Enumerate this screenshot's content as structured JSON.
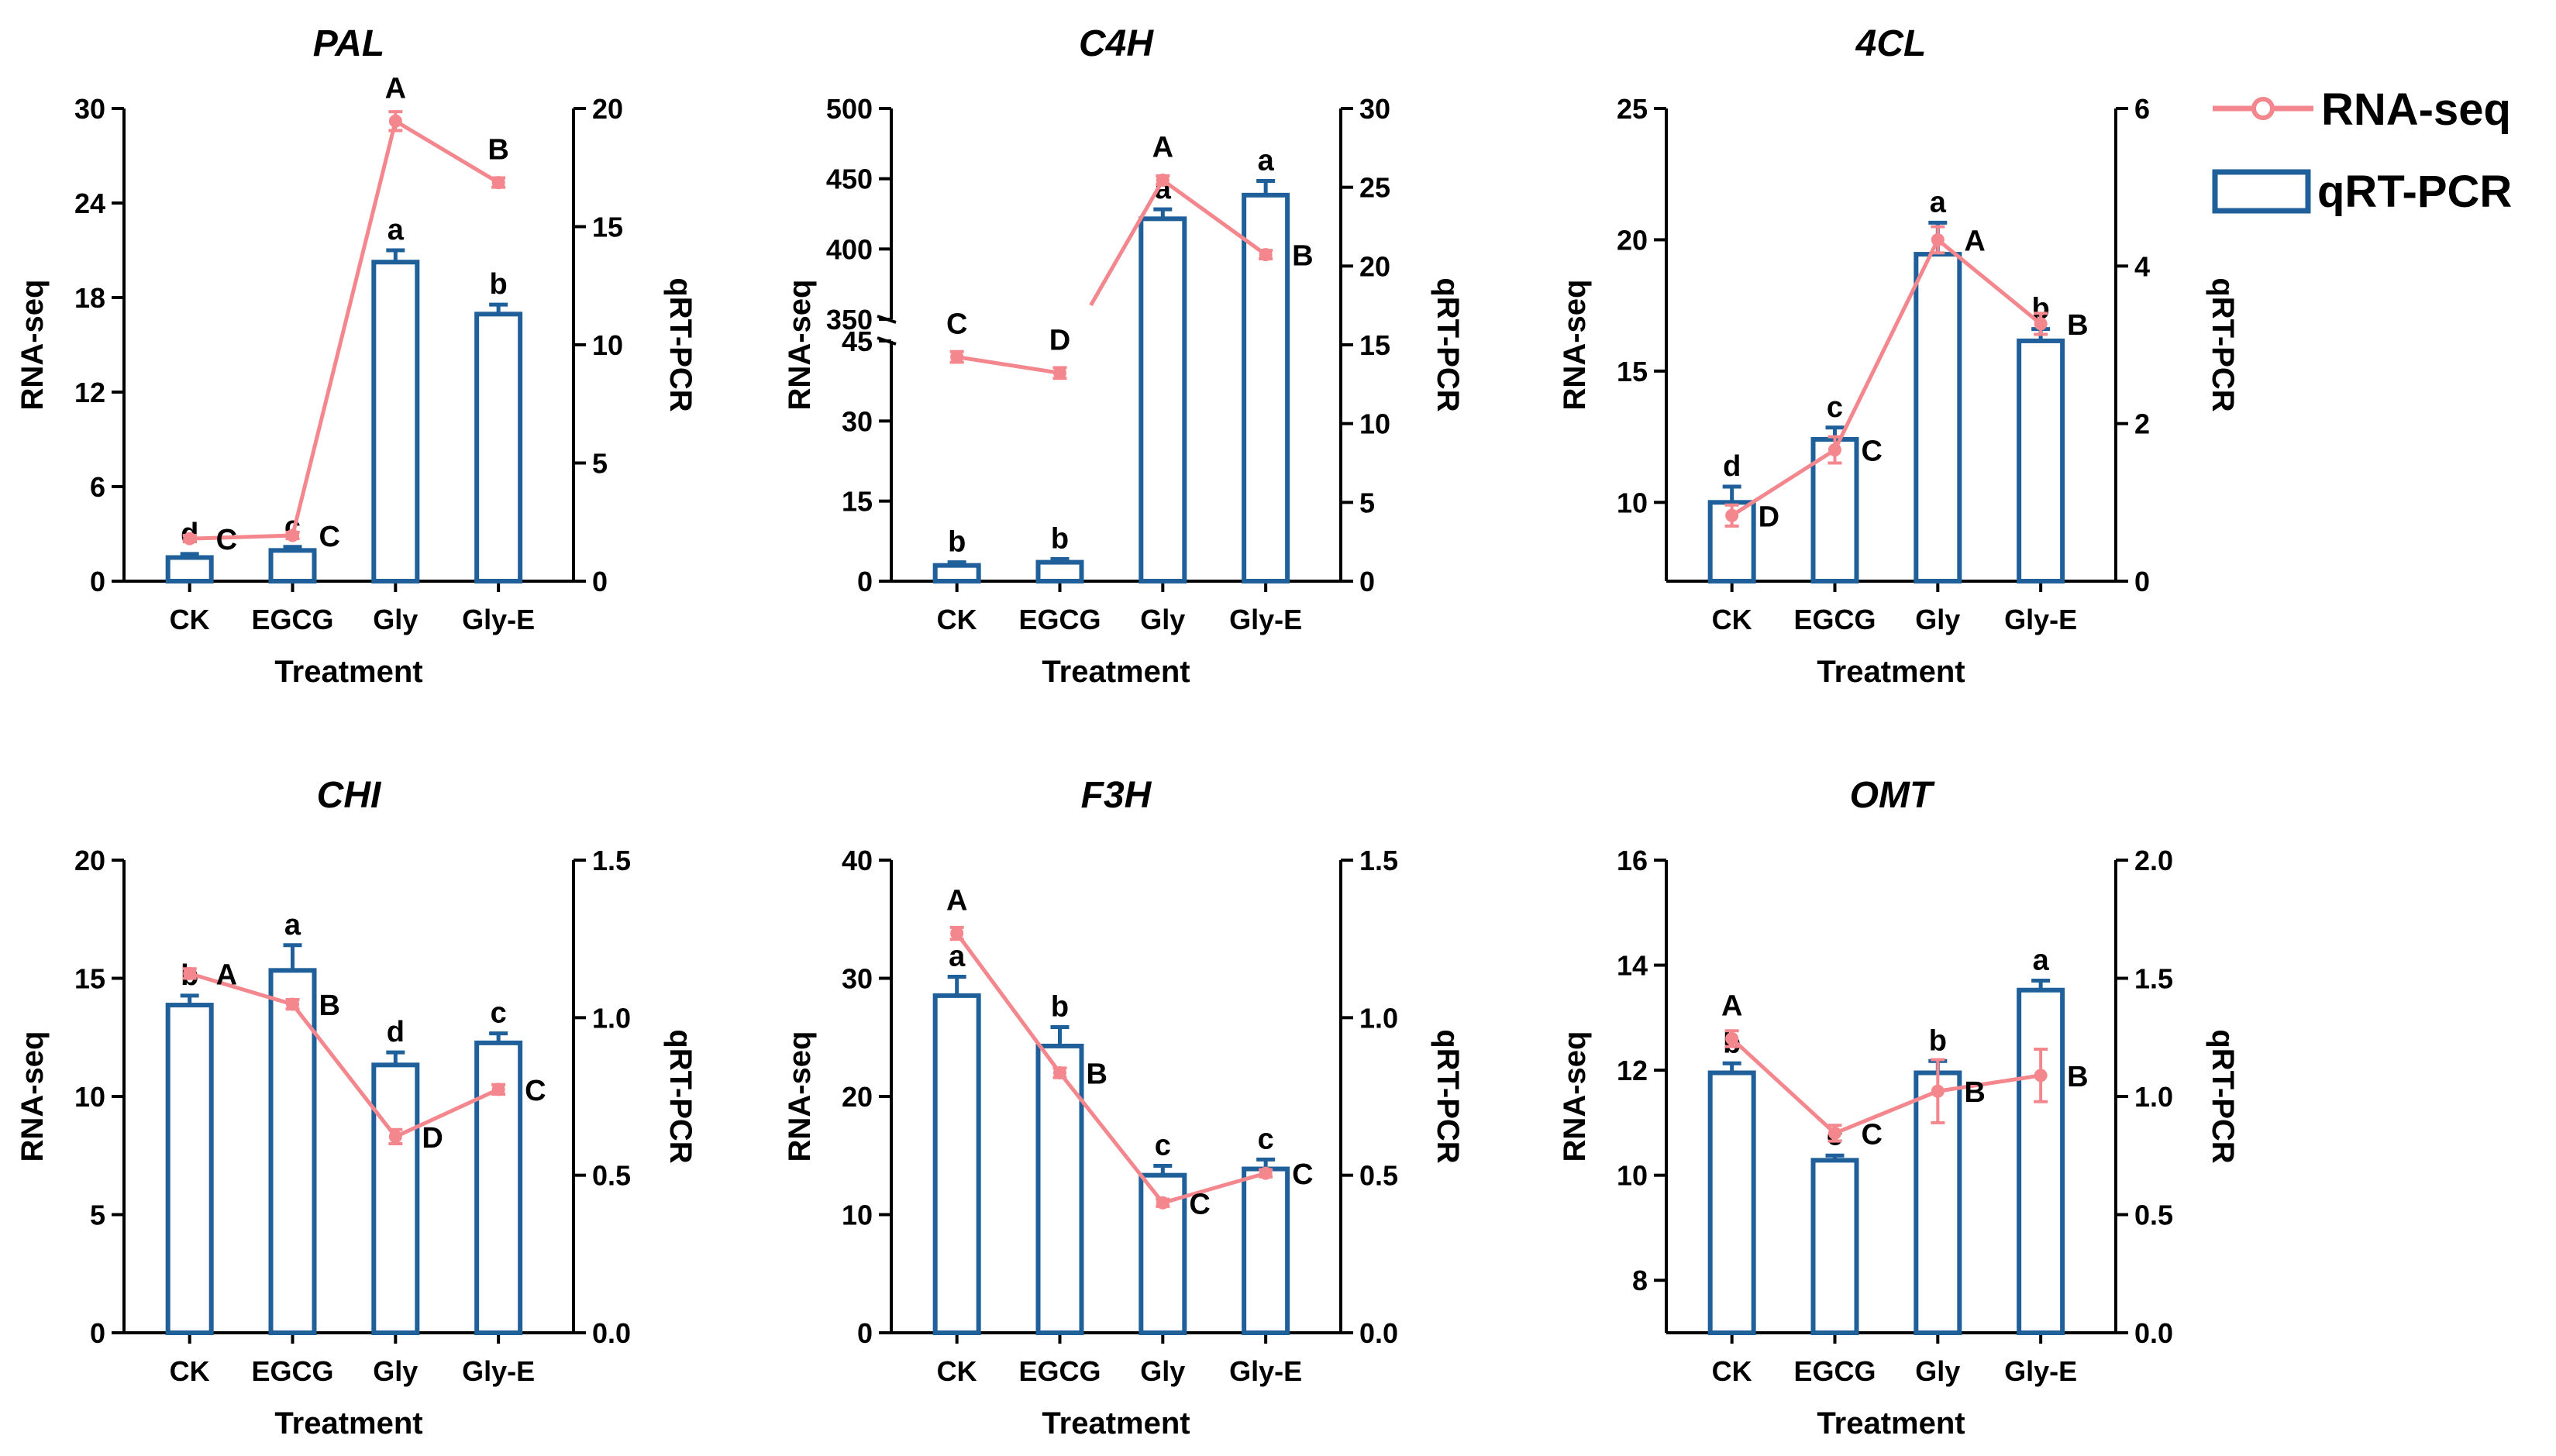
{
  "legend": {
    "rna_label": "RNA-seq",
    "qpcr_label": "qRT-PCR"
  },
  "colors": {
    "rna_line": "#f4878d",
    "qpcr_bar": "#1f5f9a",
    "axis": "#000000"
  },
  "chart_data": [
    {
      "type": "bar",
      "title": "PAL",
      "categories": [
        "CK",
        "EGCG",
        "Gly",
        "Gly-E"
      ],
      "xlabel": "Treatment",
      "ylabel": "RNA-seq",
      "y2label": "qRT-PCR",
      "ylim": [
        0,
        30
      ],
      "yticks": [
        0,
        6,
        12,
        18,
        24,
        30
      ],
      "y2lim": [
        0,
        20
      ],
      "y2ticks": [
        0,
        5,
        10,
        15,
        20
      ],
      "series": [
        {
          "name": "RNA-seq",
          "type": "line",
          "axis": "left",
          "values": [
            2.7,
            2.9,
            29.2,
            25.3
          ],
          "errors": [
            0.2,
            0.2,
            0.6,
            0.3
          ],
          "labels": [
            "C",
            "C",
            "A",
            "B"
          ]
        },
        {
          "name": "qRT-PCR",
          "type": "bar",
          "axis": "right",
          "values": [
            1.0,
            1.3,
            13.5,
            11.3
          ],
          "errors": [
            0.15,
            0.15,
            0.5,
            0.4
          ],
          "labels": [
            "d",
            "c",
            "a",
            "b"
          ]
        }
      ]
    },
    {
      "type": "bar",
      "title": "C4H",
      "categories": [
        "CK",
        "EGCG",
        "Gly",
        "Gly-E"
      ],
      "xlabel": "Treatment",
      "ylabel": "RNA-seq",
      "y2label": "qRT-PCR",
      "ylim": [
        0,
        500
      ],
      "axis_break": true,
      "yticks_labels": [
        "0",
        "15",
        "30",
        "45",
        "350",
        "400",
        "450",
        "500"
      ],
      "y2lim": [
        0,
        30
      ],
      "y2ticks": [
        0,
        5,
        10,
        15,
        20,
        25,
        30
      ],
      "series": [
        {
          "name": "RNA-seq",
          "type": "line",
          "axis": "left",
          "values": [
            42,
            39,
            449,
            396
          ],
          "errors": [
            1,
            1,
            3,
            3
          ],
          "labels": [
            "C",
            "D",
            "A",
            "B"
          ]
        },
        {
          "name": "qRT-PCR",
          "type": "bar",
          "axis": "right",
          "values": [
            1.0,
            1.2,
            23.0,
            24.5
          ],
          "errors": [
            0.2,
            0.2,
            0.6,
            0.9
          ],
          "labels": [
            "b",
            "b",
            "a",
            "a"
          ]
        }
      ]
    },
    {
      "type": "bar",
      "title": "4CL",
      "categories": [
        "CK",
        "EGCG",
        "Gly",
        "Gly-E"
      ],
      "xlabel": "Treatment",
      "ylabel": "RNA-seq",
      "y2label": "qRT-PCR",
      "ylim": [
        7,
        25
      ],
      "yticks": [
        10,
        15,
        20,
        25
      ],
      "y2lim": [
        0,
        6
      ],
      "y2ticks": [
        0,
        2,
        4,
        6
      ],
      "series": [
        {
          "name": "RNA-seq",
          "type": "line",
          "axis": "left",
          "values": [
            9.5,
            12.0,
            20.0,
            16.8
          ],
          "errors": [
            0.4,
            0.5,
            0.5,
            0.4
          ],
          "labels": [
            "D",
            "C",
            "A",
            "B"
          ]
        },
        {
          "name": "qRT-PCR",
          "type": "bar",
          "axis": "right",
          "values": [
            1.0,
            1.8,
            4.15,
            3.05
          ],
          "errors": [
            0.2,
            0.15,
            0.4,
            0.15
          ],
          "labels": [
            "d",
            "c",
            "a",
            "b"
          ]
        }
      ]
    },
    {
      "type": "bar",
      "title": "CHI",
      "categories": [
        "CK",
        "EGCG",
        "Gly",
        "Gly-E"
      ],
      "xlabel": "Treatment",
      "ylabel": "RNA-seq",
      "y2label": "qRT-PCR",
      "ylim": [
        0,
        20
      ],
      "yticks": [
        0,
        5,
        10,
        15,
        20
      ],
      "y2lim": [
        0,
        1.5
      ],
      "y2ticks": [
        "0.0",
        "0.5",
        "1.0",
        "1.5"
      ],
      "series": [
        {
          "name": "RNA-seq",
          "type": "line",
          "axis": "left",
          "values": [
            15.2,
            13.9,
            8.3,
            10.3
          ],
          "errors": [
            0.2,
            0.2,
            0.3,
            0.2
          ],
          "labels": [
            "A",
            "B",
            "D",
            "C"
          ]
        },
        {
          "name": "qRT-PCR",
          "type": "bar",
          "axis": "right",
          "values": [
            1.04,
            1.15,
            0.85,
            0.92
          ],
          "errors": [
            0.03,
            0.08,
            0.04,
            0.03
          ],
          "labels": [
            "b",
            "a",
            "d",
            "c"
          ]
        }
      ]
    },
    {
      "type": "bar",
      "title": "F3H",
      "categories": [
        "CK",
        "EGCG",
        "Gly",
        "Gly-E"
      ],
      "xlabel": "Treatment",
      "ylabel": "RNA-seq",
      "y2label": "qRT-PCR",
      "ylim": [
        0,
        40
      ],
      "yticks": [
        0,
        10,
        20,
        30,
        40
      ],
      "y2lim": [
        0,
        1.5
      ],
      "y2ticks": [
        "0.0",
        "0.5",
        "1.0",
        "1.5"
      ],
      "series": [
        {
          "name": "RNA-seq",
          "type": "line",
          "axis": "left",
          "values": [
            33.8,
            22.0,
            11.0,
            13.5
          ],
          "errors": [
            0.5,
            0.4,
            0.3,
            0.3
          ],
          "labels": [
            "A",
            "B",
            "C",
            "C"
          ]
        },
        {
          "name": "qRT-PCR",
          "type": "bar",
          "axis": "right",
          "values": [
            1.07,
            0.91,
            0.5,
            0.52
          ],
          "errors": [
            0.06,
            0.06,
            0.03,
            0.03
          ],
          "labels": [
            "a",
            "b",
            "c",
            "c"
          ]
        }
      ]
    },
    {
      "type": "bar",
      "title": "OMT",
      "categories": [
        "CK",
        "EGCG",
        "Gly",
        "Gly-E"
      ],
      "xlabel": "Treatment",
      "ylabel": "RNA-seq",
      "y2label": "qRT-PCR",
      "ylim": [
        7,
        16
      ],
      "yticks": [
        8,
        10,
        12,
        14,
        16
      ],
      "y2lim": [
        0,
        2.0
      ],
      "y2ticks": [
        "0.0",
        "0.5",
        "1.0",
        "1.5",
        "2.0"
      ],
      "series": [
        {
          "name": "RNA-seq",
          "type": "line",
          "axis": "left",
          "values": [
            12.6,
            10.8,
            11.6,
            11.9
          ],
          "errors": [
            0.15,
            0.15,
            0.6,
            0.5
          ],
          "labels": [
            "A",
            "C",
            "B",
            "B"
          ]
        },
        {
          "name": "qRT-PCR",
          "type": "bar",
          "axis": "right",
          "values": [
            1.1,
            0.73,
            1.1,
            1.45
          ],
          "errors": [
            0.04,
            0.02,
            0.05,
            0.04
          ],
          "labels": [
            "b",
            "c",
            "b",
            "a"
          ]
        }
      ]
    }
  ]
}
